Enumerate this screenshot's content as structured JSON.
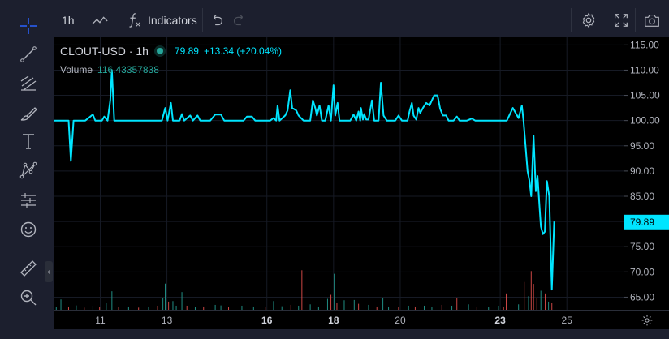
{
  "top_toolbar": {
    "interval": "1h",
    "indicators_label": "Indicators"
  },
  "legend": {
    "symbol": "CLOUT-USD · 1h",
    "last_price": "79.89",
    "change": "+13.34 (+20.04%)",
    "volume_label": "Volume",
    "volume_value": "116.43357838"
  },
  "icons": {
    "left_toolbar": [
      "crosshair-icon",
      "trend-line-icon",
      "fib-retracement-icon",
      "brush-icon",
      "text-icon",
      "pattern-icon",
      "prediction-icon",
      "emoji-icon",
      "ruler-icon",
      "zoom-in-icon"
    ],
    "top_toolbar": [
      "line-chart-type-icon",
      "fx-icon",
      "undo-icon",
      "redo-icon",
      "settings-icon",
      "fullscreen-icon",
      "camera-icon"
    ],
    "corner": "gear-icon"
  },
  "colors": {
    "background": "#000000",
    "toolbar": "#1c1f2e",
    "price_line": "#00e5ff",
    "volume_up": "#26a69a",
    "volume_down": "#ef5350",
    "last_price_badge": "#00e5ff",
    "axis_text": "#b2b5be",
    "grid": "#161a25"
  },
  "chart_data": {
    "type": "line",
    "price_axis": {
      "ticks": [
        "115.00",
        "110.00",
        "105.00",
        "100.00",
        "95.00",
        "90.00",
        "85.00",
        "80.00",
        "75.00",
        "70.00",
        "65.00"
      ],
      "tick_values": [
        115,
        110,
        105,
        100,
        95,
        90,
        85,
        80,
        75,
        70,
        65
      ],
      "last_price_label": "79.89",
      "last_price_value": 79.89
    },
    "time_axis": {
      "labels": [
        "11",
        "13",
        "16",
        "18",
        "20",
        "23",
        "25"
      ],
      "label_days": [
        11,
        13,
        16,
        18,
        20,
        23,
        25
      ],
      "bold": [
        "16",
        "18",
        "23"
      ]
    },
    "x_range_days": [
      9.6,
      26.7
    ],
    "y_range": [
      62.5,
      116.5
    ],
    "series": [
      {
        "points": [
          [
            9.6,
            100
          ],
          [
            10.05,
            100
          ],
          [
            10.12,
            92
          ],
          [
            10.2,
            100
          ],
          [
            10.55,
            100
          ],
          [
            10.78,
            101.2
          ],
          [
            10.85,
            100
          ],
          [
            11.05,
            100
          ],
          [
            11.12,
            100.8
          ],
          [
            11.22,
            100
          ],
          [
            11.3,
            104
          ],
          [
            11.35,
            110
          ],
          [
            11.42,
            100
          ],
          [
            12.0,
            100
          ],
          [
            12.85,
            100
          ],
          [
            12.95,
            102.5
          ],
          [
            13.02,
            100
          ],
          [
            13.12,
            103.5
          ],
          [
            13.18,
            100
          ],
          [
            13.38,
            100
          ],
          [
            13.45,
            101.3
          ],
          [
            13.52,
            100
          ],
          [
            13.7,
            101
          ],
          [
            13.78,
            100
          ],
          [
            13.92,
            101
          ],
          [
            14.0,
            100
          ],
          [
            14.3,
            100
          ],
          [
            14.45,
            101.2
          ],
          [
            14.62,
            101.2
          ],
          [
            14.72,
            100
          ],
          [
            15.3,
            100
          ],
          [
            15.4,
            100.8
          ],
          [
            15.55,
            100.8
          ],
          [
            15.65,
            100
          ],
          [
            16.1,
            100
          ],
          [
            16.2,
            100.5
          ],
          [
            16.28,
            100
          ],
          [
            16.32,
            103
          ],
          [
            16.38,
            100
          ],
          [
            16.55,
            101
          ],
          [
            16.62,
            102
          ],
          [
            16.7,
            106
          ],
          [
            16.76,
            102.5
          ],
          [
            16.88,
            102
          ],
          [
            16.95,
            101
          ],
          [
            17.1,
            100
          ],
          [
            17.3,
            100
          ],
          [
            17.38,
            104
          ],
          [
            17.45,
            102.5
          ],
          [
            17.5,
            101
          ],
          [
            17.58,
            103
          ],
          [
            17.65,
            100
          ],
          [
            17.75,
            100
          ],
          [
            17.85,
            103
          ],
          [
            17.92,
            100
          ],
          [
            18.0,
            107
          ],
          [
            18.05,
            101
          ],
          [
            18.12,
            103.5
          ],
          [
            18.18,
            100
          ],
          [
            18.5,
            100
          ],
          [
            18.6,
            101.2
          ],
          [
            18.68,
            100
          ],
          [
            18.75,
            101.8
          ],
          [
            18.8,
            100
          ],
          [
            18.82,
            102.5
          ],
          [
            18.88,
            100.2
          ],
          [
            18.92,
            101.3
          ],
          [
            18.98,
            100.2
          ],
          [
            19.05,
            100.2
          ],
          [
            19.15,
            104
          ],
          [
            19.22,
            100
          ],
          [
            19.35,
            100
          ],
          [
            19.42,
            107.5
          ],
          [
            19.5,
            101
          ],
          [
            19.6,
            100
          ],
          [
            19.85,
            100
          ],
          [
            19.95,
            101
          ],
          [
            20.05,
            100
          ],
          [
            20.22,
            100
          ],
          [
            20.28,
            101.8
          ],
          [
            20.35,
            103.5
          ],
          [
            20.4,
            101
          ],
          [
            20.48,
            100.2
          ],
          [
            20.55,
            102.5
          ],
          [
            20.6,
            101.5
          ],
          [
            20.68,
            102.5
          ],
          [
            20.78,
            103.5
          ],
          [
            20.88,
            103
          ],
          [
            20.95,
            104
          ],
          [
            21.02,
            105
          ],
          [
            21.12,
            105
          ],
          [
            21.2,
            102.3
          ],
          [
            21.28,
            101
          ],
          [
            21.38,
            101
          ],
          [
            21.45,
            100
          ],
          [
            21.6,
            100
          ],
          [
            21.7,
            100.8
          ],
          [
            21.78,
            100
          ],
          [
            22.0,
            100
          ],
          [
            22.15,
            100.4
          ],
          [
            22.25,
            100
          ],
          [
            23.2,
            100
          ],
          [
            23.38,
            102.5
          ],
          [
            23.55,
            100.5
          ],
          [
            23.65,
            103
          ],
          [
            23.7,
            100
          ],
          [
            23.82,
            90
          ],
          [
            23.88,
            88
          ],
          [
            23.93,
            85
          ],
          [
            24.0,
            97
          ],
          [
            24.07,
            86
          ],
          [
            24.12,
            89
          ],
          [
            24.18,
            83
          ],
          [
            24.22,
            79
          ],
          [
            24.28,
            77.5
          ],
          [
            24.34,
            78
          ],
          [
            24.4,
            88
          ],
          [
            24.47,
            85
          ],
          [
            24.55,
            66.5
          ],
          [
            24.62,
            80
          ]
        ]
      },
      {
        "name": "Volume",
        "bars": [
          [
            9.68,
            1.0,
            1
          ],
          [
            9.82,
            3.8,
            1
          ],
          [
            10.05,
            1.2,
            0
          ],
          [
            10.28,
            1.6,
            1
          ],
          [
            10.52,
            0.8,
            0
          ],
          [
            10.78,
            1.5,
            1
          ],
          [
            10.98,
            1.0,
            0
          ],
          [
            11.18,
            2.4,
            1
          ],
          [
            11.35,
            6.8,
            1
          ],
          [
            11.55,
            1.0,
            0
          ],
          [
            11.85,
            1.2,
            1
          ],
          [
            12.15,
            0.8,
            0
          ],
          [
            12.45,
            1.2,
            1
          ],
          [
            12.72,
            1.5,
            0
          ],
          [
            12.88,
            4.2,
            1
          ],
          [
            12.95,
            9.6,
            1
          ],
          [
            13.05,
            3.0,
            0
          ],
          [
            13.18,
            3.2,
            1
          ],
          [
            13.28,
            1.5,
            1
          ],
          [
            13.45,
            6.5,
            1
          ],
          [
            13.6,
            1.5,
            0
          ],
          [
            13.85,
            0.9,
            1
          ],
          [
            14.1,
            1.2,
            0
          ],
          [
            14.45,
            1.8,
            1
          ],
          [
            14.62,
            1.6,
            1
          ],
          [
            14.85,
            1.0,
            0
          ],
          [
            15.25,
            1.5,
            1
          ],
          [
            15.6,
            1.2,
            1
          ],
          [
            15.95,
            0.9,
            0
          ],
          [
            16.2,
            3.2,
            1
          ],
          [
            16.45,
            1.3,
            1
          ],
          [
            16.72,
            1.8,
            0
          ],
          [
            16.95,
            1.5,
            1
          ],
          [
            17.05,
            14.5,
            0
          ],
          [
            17.3,
            2.0,
            1
          ],
          [
            17.55,
            1.2,
            1
          ],
          [
            17.82,
            4.0,
            1
          ],
          [
            17.92,
            5.5,
            0
          ],
          [
            18.02,
            13.2,
            1
          ],
          [
            18.1,
            2.5,
            0
          ],
          [
            18.32,
            3.5,
            1
          ],
          [
            18.62,
            3.6,
            1
          ],
          [
            18.75,
            2.2,
            0
          ],
          [
            19.05,
            1.8,
            1
          ],
          [
            19.3,
            1.2,
            0
          ],
          [
            19.48,
            4.2,
            1
          ],
          [
            19.65,
            1.2,
            1
          ],
          [
            19.95,
            1.0,
            0
          ],
          [
            20.25,
            1.5,
            1
          ],
          [
            20.45,
            1.2,
            0
          ],
          [
            20.72,
            1.5,
            1
          ],
          [
            20.95,
            1.0,
            1
          ],
          [
            21.25,
            1.8,
            0
          ],
          [
            21.55,
            1.5,
            1
          ],
          [
            21.7,
            4.2,
            0
          ],
          [
            22.05,
            2.0,
            1
          ],
          [
            22.3,
            1.2,
            0
          ],
          [
            22.65,
            1.0,
            1
          ],
          [
            22.95,
            1.5,
            1
          ],
          [
            23.1,
            1.2,
            0
          ],
          [
            23.18,
            6.0,
            0
          ],
          [
            23.55,
            2.0,
            1
          ],
          [
            23.72,
            10.2,
            0
          ],
          [
            23.85,
            5.0,
            1
          ],
          [
            23.93,
            14.2,
            0
          ],
          [
            24.0,
            9.5,
            0
          ],
          [
            24.1,
            4.2,
            0
          ],
          [
            24.22,
            7.0,
            1
          ],
          [
            24.35,
            6.0,
            0
          ],
          [
            24.45,
            3.0,
            1
          ],
          [
            24.55,
            2.5,
            0
          ]
        ]
      }
    ]
  }
}
